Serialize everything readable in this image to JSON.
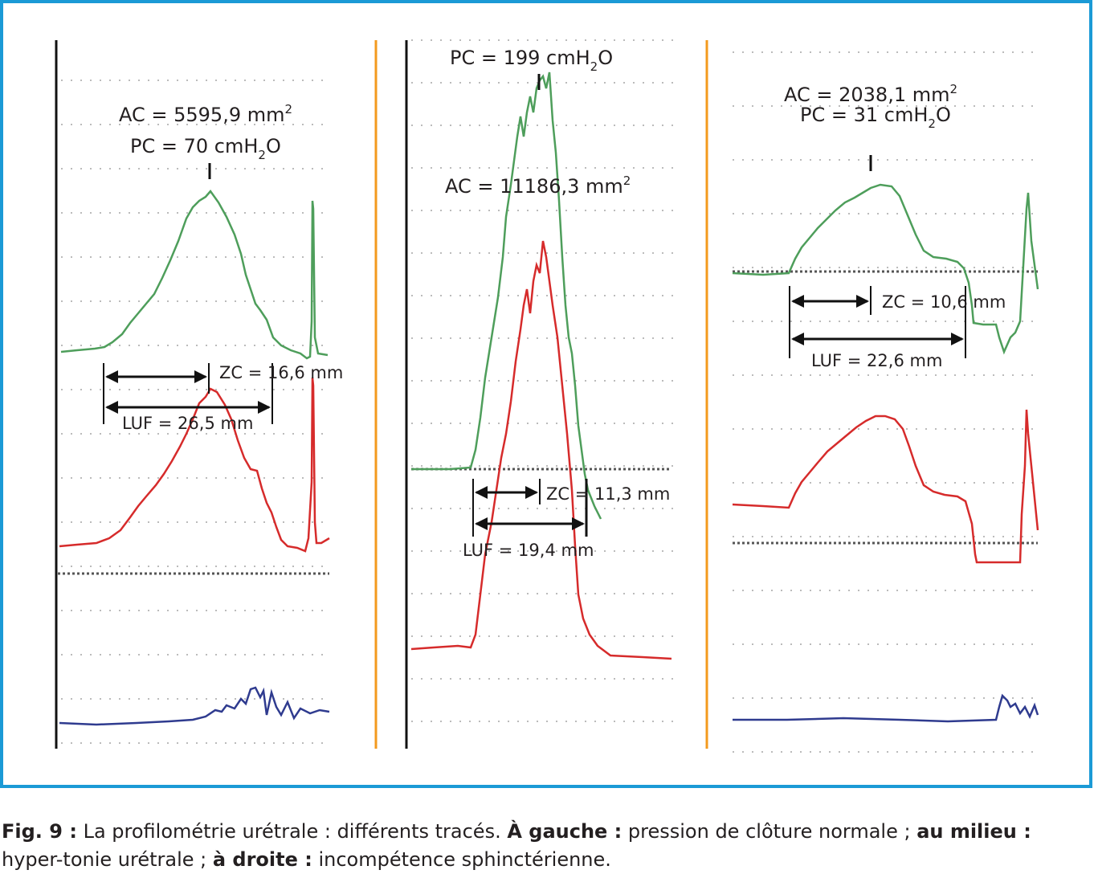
{
  "colors": {
    "frame": "#1b9ad6",
    "separator": "#f39a1e",
    "axis": "#111111",
    "grid": "#bbbbbb",
    "green_trace": "#4e9e5b",
    "red_trace": "#d62b2b",
    "blue_trace": "#2f3b8f"
  },
  "panels": {
    "left": {
      "ac_prefix": "AC = 5595,9 mm",
      "ac_sup": "2",
      "pc_prefix": "PC = 70 cmH",
      "pc_sub": "2",
      "pc_suffix": "O",
      "zc": "ZC = 16,6 mm",
      "luf": "LUF = 26,5 mm"
    },
    "middle": {
      "pc_prefix": "PC = 199 cmH",
      "pc_sub": "2",
      "pc_suffix": "O",
      "ac_prefix": "AC = 11186,3 mm",
      "ac_sup": "2",
      "zc": "ZC = 11,3 mm",
      "luf": "LUF = 19,4 mm"
    },
    "right": {
      "ac_prefix": "AC = 2038,1 mm",
      "ac_sup": "2",
      "pc_prefix": "PC = 31 cmH",
      "pc_sub": "2",
      "pc_suffix": "O",
      "zc": "ZC = 10,6 mm",
      "luf": "LUF = 22,6 mm"
    }
  },
  "caption": {
    "fig": "Fig. 9 :",
    "t1": " La profilométrie urétrale : différents tracés. ",
    "b1": "À gauche :",
    "t2": " pression de clôture normale ; ",
    "b2": "au milieu :",
    "t3": " hyper-tonie urétrale ; ",
    "b3": "à droite :",
    "t4": " incompétence sphinctérienne."
  }
}
